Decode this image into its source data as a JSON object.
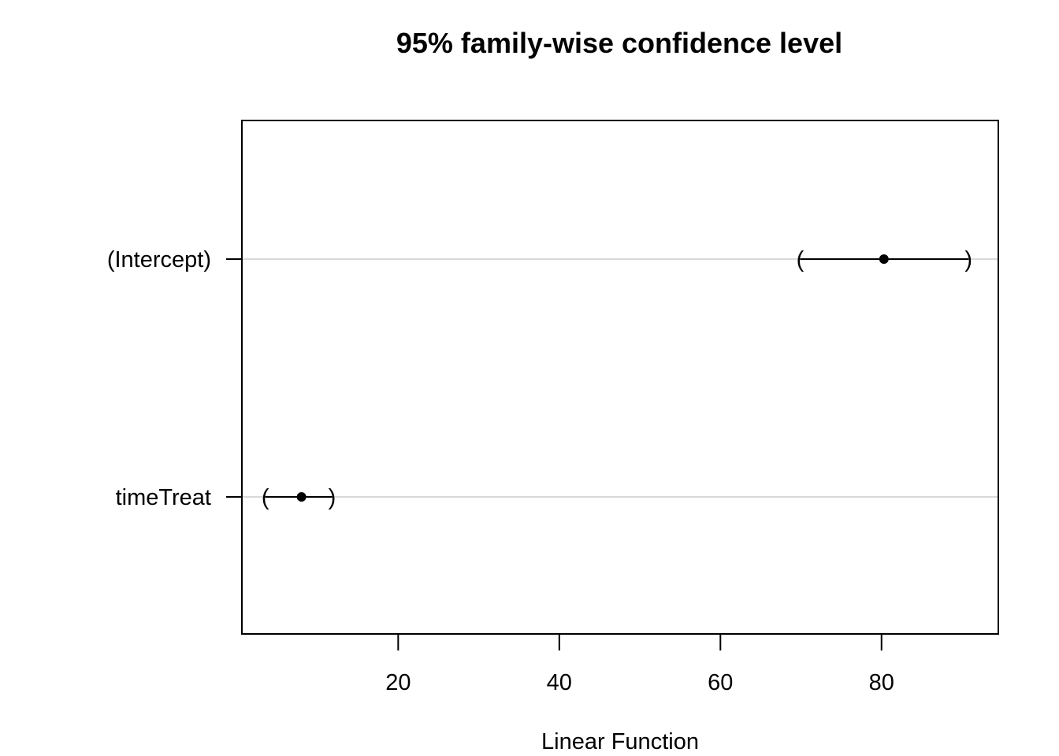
{
  "chart_data": {
    "type": "interval",
    "title": "95% family-wise confidence level",
    "xlabel": "Linear Function",
    "ylabel": "",
    "xlim": [
      0.6,
      94.5
    ],
    "xticks": [
      20,
      40,
      60,
      80
    ],
    "grid": "horizontal reference lines at each term",
    "categories": [
      "(Intercept)",
      "timeTreat"
    ],
    "estimates": [
      80.3,
      8.0
    ],
    "lower": [
      69.9,
      3.5
    ],
    "upper": [
      90.8,
      11.8
    ],
    "colors": {
      "interval": "#000000",
      "point": "#000000",
      "gridline": "#d9d9d9",
      "frame": "#000000"
    }
  }
}
